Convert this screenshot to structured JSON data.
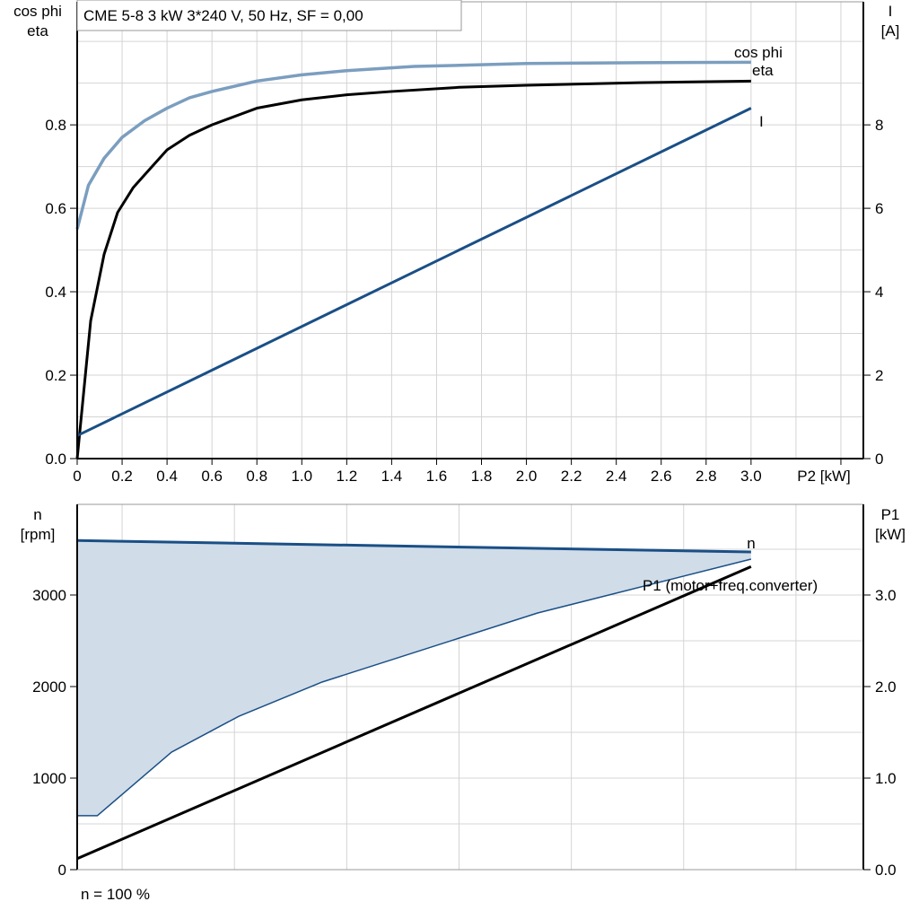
{
  "title": "CME 5-8   3 kW   3*240 V, 50 Hz, SF = 0,00",
  "footer_note": "n = 100 %",
  "colors": {
    "cos_phi": "#7b9ebf",
    "eta": "#000000",
    "I": "#1a4f86",
    "n": "#1a4f86",
    "n_area": "#d0dce8",
    "P1": "#000000",
    "grid": "#d4d4d4"
  },
  "chart_data": [
    {
      "type": "line",
      "xlabel": "P2 [kW]",
      "ylabel_left": [
        "cos phi",
        "eta"
      ],
      "ylabel_right": [
        "I",
        "[A]"
      ],
      "xlim": [
        0,
        3.5
      ],
      "ylim_left": [
        0,
        1.095
      ],
      "ylim_right": [
        0,
        10.95
      ],
      "x_ticks": [
        "0",
        "0.2",
        "0.4",
        "0.6",
        "0.8",
        "1.0",
        "1.2",
        "1.4",
        "1.6",
        "1.8",
        "2.0",
        "2.2",
        "2.4",
        "2.6",
        "2.8",
        "3.0"
      ],
      "y_ticks_left": [
        "0.0",
        "0.2",
        "0.4",
        "0.6",
        "0.8"
      ],
      "y_ticks_right": [
        "0",
        "2",
        "4",
        "6",
        "8"
      ],
      "grid": true,
      "series": [
        {
          "name": "cos phi",
          "axis": "left",
          "x": [
            0,
            0.05,
            0.12,
            0.2,
            0.3,
            0.4,
            0.5,
            0.6,
            0.8,
            1.0,
            1.2,
            1.5,
            2.0,
            2.5,
            3.0
          ],
          "y": [
            0.55,
            0.655,
            0.72,
            0.77,
            0.81,
            0.84,
            0.865,
            0.88,
            0.905,
            0.92,
            0.93,
            0.94,
            0.947,
            0.949,
            0.95
          ]
        },
        {
          "name": "eta",
          "axis": "left",
          "x": [
            0,
            0.06,
            0.12,
            0.18,
            0.25,
            0.3,
            0.4,
            0.5,
            0.6,
            0.8,
            1.0,
            1.2,
            1.4,
            1.7,
            2.0,
            2.5,
            3.0
          ],
          "y": [
            0,
            0.33,
            0.49,
            0.59,
            0.65,
            0.68,
            0.74,
            0.775,
            0.8,
            0.84,
            0.86,
            0.872,
            0.88,
            0.89,
            0.895,
            0.901,
            0.905
          ]
        },
        {
          "name": "I",
          "axis": "right",
          "x": [
            0,
            3.0
          ],
          "y": [
            0.55,
            8.4
          ]
        }
      ]
    },
    {
      "type": "area",
      "ylabel_left": [
        "n",
        "[rpm]"
      ],
      "ylabel_right": [
        "P1",
        "[kW]"
      ],
      "xlim": [
        0,
        3.5
      ],
      "ylim_left": [
        0,
        3990
      ],
      "ylim_right": [
        0,
        3.99
      ],
      "y_ticks_left": [
        "0",
        "1000",
        "2000",
        "3000"
      ],
      "y_ticks_right": [
        "0.0",
        "1.0",
        "2.0",
        "3.0"
      ],
      "grid": true,
      "series": [
        {
          "name": "n",
          "axis": "left",
          "x": [
            0,
            3.0
          ],
          "y": [
            3595,
            3470
          ]
        },
        {
          "axis": "left",
          "x": [
            0,
            0.09,
            0.42,
            0.72,
            1.09,
            2.05,
            3.0
          ],
          "y": [
            590,
            590,
            1284,
            1676,
            2049,
            2804,
            3392
          ]
        },
        {
          "name": "P1 (motor+freq.converter)",
          "axis": "right",
          "x": [
            0,
            3.0
          ],
          "y": [
            0.12,
            3.31
          ]
        }
      ]
    }
  ]
}
